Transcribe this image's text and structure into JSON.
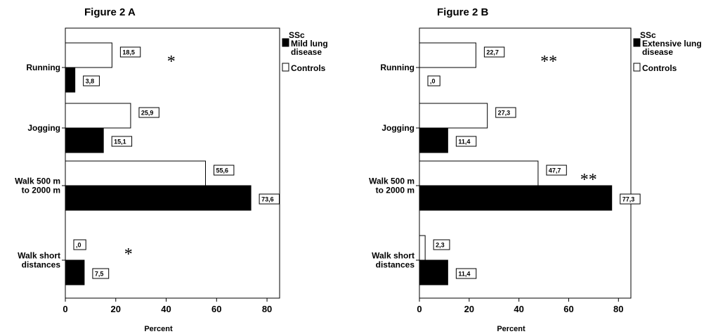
{
  "chart_data": [
    {
      "type": "bar",
      "orientation": "horizontal",
      "title": "Figure 2 A",
      "xlabel": "Percent",
      "xlim": [
        0,
        85
      ],
      "xticks": [
        0,
        20,
        40,
        60,
        80
      ],
      "categories": [
        [
          "Running"
        ],
        [
          "Jogging"
        ],
        [
          "Walk 500 m",
          "to 2000 m"
        ],
        [
          "Walk short",
          "distances"
        ]
      ],
      "series": [
        {
          "name": "Controls",
          "color": "#ffffff",
          "values": [
            18.5,
            25.9,
            55.6,
            0.0
          ],
          "labels": [
            "18,5",
            "25,9",
            "55,6",
            ",0"
          ]
        },
        {
          "name": "SSc Mild lung disease",
          "legend_lines": [
            "SSc",
            "Mild lung",
            "disease"
          ],
          "color": "#000000",
          "values": [
            3.8,
            15.1,
            73.6,
            7.5
          ],
          "labels": [
            "3,8",
            "15,1",
            "73,6",
            "7,5"
          ]
        }
      ],
      "legend_placement": "right",
      "legend_order": [
        "SSc Mild lung disease",
        "Controls"
      ],
      "annotations": [
        {
          "text": "*",
          "category_index": 0,
          "x": 42
        },
        {
          "text": "*",
          "category_index": 3,
          "x": 25
        }
      ]
    },
    {
      "type": "bar",
      "orientation": "horizontal",
      "title": "Figure 2 B",
      "xlabel": "Percent",
      "xlim": [
        0,
        85
      ],
      "xticks": [
        0,
        20,
        40,
        60,
        80
      ],
      "categories": [
        [
          "Running"
        ],
        [
          "Jogging"
        ],
        [
          "Walk 500 m",
          "to 2000 m"
        ],
        [
          "Walk short",
          "distances"
        ]
      ],
      "series": [
        {
          "name": "Controls",
          "color": "#ffffff",
          "values": [
            22.7,
            27.3,
            47.7,
            2.3
          ],
          "labels": [
            "22,7",
            "27,3",
            "47,7",
            "2,3"
          ]
        },
        {
          "name": "SSc Extensive lung disease",
          "legend_lines": [
            "SSc",
            "Extensive lung",
            "disease"
          ],
          "color": "#000000",
          "values": [
            0.0,
            11.4,
            77.3,
            11.4
          ],
          "labels": [
            ",0",
            "11,4",
            "77,3",
            "11,4"
          ]
        }
      ],
      "legend_placement": "right",
      "legend_order": [
        "SSc Extensive lung disease",
        "Controls"
      ],
      "annotations": [
        {
          "text": "**",
          "category_index": 0,
          "x": 52
        },
        {
          "text": "**",
          "category_index": 2,
          "x": 68
        }
      ]
    }
  ]
}
